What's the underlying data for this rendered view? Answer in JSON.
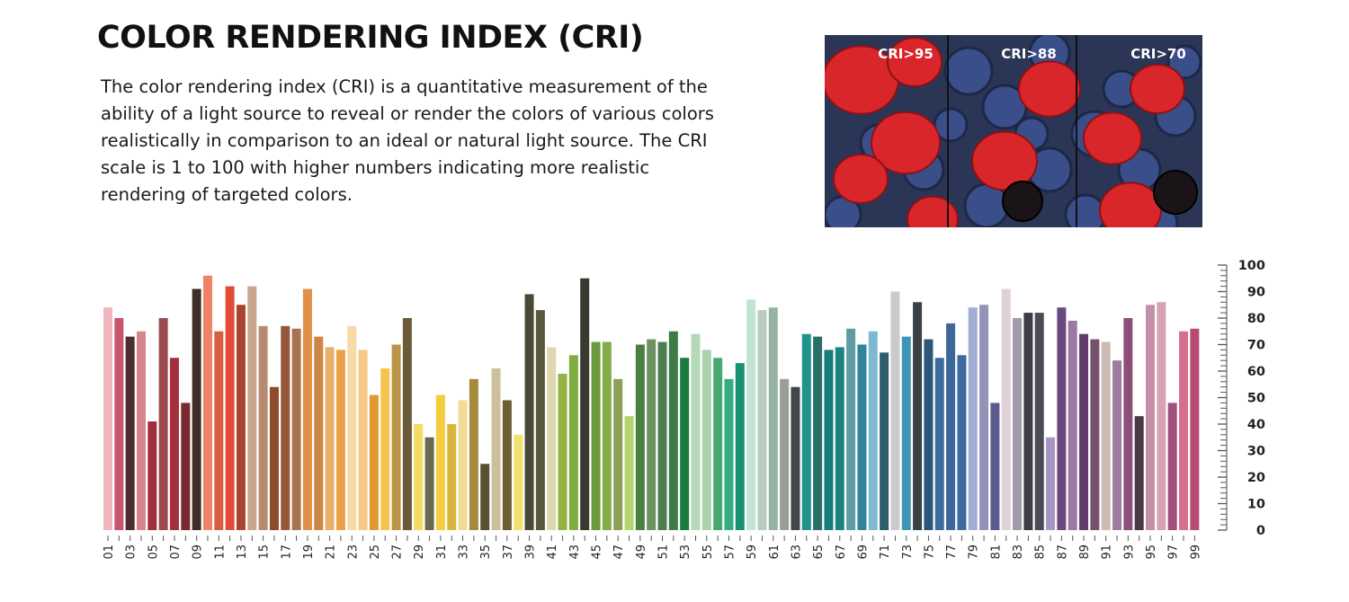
{
  "header": {
    "title": "COLOR RENDERING INDEX (CRI)",
    "description": "The color rendering index (CRI) is a quantitative measurement of the ability of a light source to reveal or render the colors of various colors realistically in comparison to an ideal or natural light source. The CRI scale is 1 to 100 with higher numbers indicating more realistic rendering of targeted colors."
  },
  "photo": {
    "panels": [
      "CRI>95",
      "CRI>88",
      "CRI>70"
    ]
  },
  "chart_data": {
    "type": "bar",
    "ylim": [
      0,
      100
    ],
    "yticks": [
      "0",
      "10",
      "20",
      "30",
      "40",
      "50",
      "60",
      "70",
      "80",
      "90",
      "100"
    ],
    "xtick_labels": [
      "01",
      "03",
      "05",
      "07",
      "09",
      "11",
      "13",
      "15",
      "17",
      "19",
      "21",
      "23",
      "25",
      "27",
      "29",
      "31",
      "33",
      "35",
      "37",
      "39",
      "41",
      "43",
      "45",
      "47",
      "49",
      "51",
      "53",
      "55",
      "57",
      "59",
      "61",
      "63",
      "65",
      "67",
      "69",
      "71",
      "73",
      "75",
      "77",
      "79",
      "81",
      "83",
      "85",
      "87",
      "89",
      "91",
      "93",
      "95",
      "97",
      "99"
    ],
    "categories": [
      "01",
      "02",
      "03",
      "04",
      "05",
      "06",
      "07",
      "08",
      "09",
      "10",
      "11",
      "12",
      "13",
      "14",
      "15",
      "16",
      "17",
      "18",
      "19",
      "20",
      "21",
      "22",
      "23",
      "24",
      "25",
      "26",
      "27",
      "28",
      "29",
      "30",
      "31",
      "32",
      "33",
      "34",
      "35",
      "36",
      "37",
      "38",
      "39",
      "40",
      "41",
      "42",
      "43",
      "44",
      "45",
      "46",
      "47",
      "48",
      "49",
      "50",
      "51",
      "52",
      "53",
      "54",
      "55",
      "56",
      "57",
      "58",
      "59",
      "60",
      "61",
      "62",
      "63",
      "64",
      "65",
      "66",
      "67",
      "68",
      "69",
      "70",
      "71",
      "72",
      "73",
      "74",
      "75",
      "76",
      "77",
      "78",
      "79",
      "80",
      "81",
      "82",
      "83",
      "84",
      "85",
      "86",
      "87",
      "88",
      "89",
      "90",
      "91",
      "92",
      "93",
      "94",
      "95",
      "96",
      "97",
      "98",
      "99"
    ],
    "values": [
      84,
      80,
      73,
      75,
      41,
      80,
      65,
      48,
      91,
      96,
      75,
      92,
      85,
      92,
      77,
      54,
      77,
      76,
      91,
      73,
      69,
      68,
      77,
      68,
      51,
      61,
      70,
      80,
      40,
      35,
      51,
      40,
      49,
      57,
      25,
      61,
      49,
      36,
      89,
      83,
      69,
      59,
      66,
      95,
      71,
      71,
      57,
      43,
      70,
      72,
      71,
      75,
      65,
      74,
      68,
      65,
      57,
      63,
      87,
      83,
      84,
      57,
      54,
      74,
      73,
      68,
      69,
      76,
      70,
      75,
      67,
      90,
      73,
      86,
      72,
      65,
      78,
      66,
      84,
      85,
      48,
      91,
      80,
      82,
      82,
      35,
      84,
      79,
      74,
      72,
      71,
      64,
      80,
      43,
      85,
      86,
      48,
      75,
      76
    ],
    "colors": [
      "#f0b6bd",
      "#c8566e",
      "#4d2e30",
      "#d6858c",
      "#a02f3b",
      "#9c4a4e",
      "#a3303c",
      "#7a2a2e",
      "#3f2d2b",
      "#ef8266",
      "#d65f42",
      "#e24c36",
      "#a9452f",
      "#c9a58d",
      "#b98a72",
      "#8f4a2a",
      "#97583a",
      "#a77350",
      "#e09048",
      "#cf8544",
      "#e7b06c",
      "#e8a347",
      "#f8d9a8",
      "#f6c984",
      "#e09a30",
      "#f5c44f",
      "#ba9448",
      "#6b5a38",
      "#f3dc62",
      "#69694c",
      "#f4cc3e",
      "#d8b53c",
      "#f0dc96",
      "#a58a3c",
      "#5a5130",
      "#cdbf9b",
      "#6a6032",
      "#f3e16e",
      "#4b4836",
      "#5b573a",
      "#ddd7b2",
      "#96b13f",
      "#7fae40",
      "#3b3832",
      "#6a9a3c",
      "#84ac49",
      "#8a9f57",
      "#b4d36d",
      "#4b7f40",
      "#6d9261",
      "#4f7d52",
      "#3f7a49",
      "#187c3f",
      "#b5d9b8",
      "#abd3ae",
      "#46a972",
      "#36ad81",
      "#169471",
      "#c2e5d3",
      "#b9ccbf",
      "#98b3a4",
      "#98a096",
      "#404846",
      "#22928c",
      "#2b6e68",
      "#147e7c",
      "#1a8580",
      "#5f9ba2",
      "#2e8597",
      "#7bbad2",
      "#2f5d6e",
      "#cbcbcb",
      "#3d96b7",
      "#3b4245",
      "#2a5777",
      "#3b6d9a",
      "#3c6798",
      "#3d6aa0",
      "#a2add3",
      "#9393b8",
      "#5a5a8e",
      "#e0d0d8",
      "#a29aa8",
      "#3d3c47",
      "#4b4a55",
      "#a795c4",
      "#6a4980",
      "#9a7aa2",
      "#5f3c6a",
      "#77506e",
      "#ccbcb3",
      "#9d7ca0",
      "#8d4f7a",
      "#4b3a47",
      "#c48ea7",
      "#d7a3b0",
      "#a04f7d",
      "#d76e8e",
      "#b74b74"
    ]
  }
}
